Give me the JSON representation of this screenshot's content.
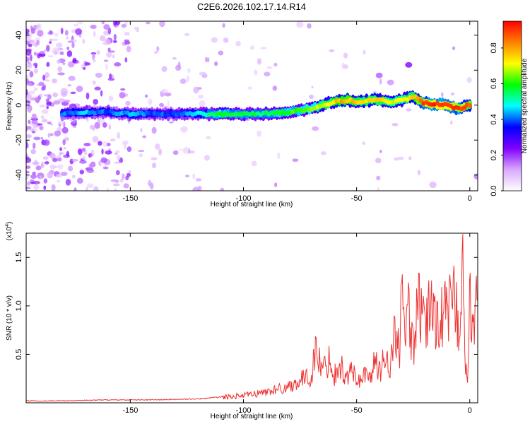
{
  "title": "C2E6.2026.102.17.14.R14",
  "chart_data": [
    {
      "type": "heatmap",
      "title": "C2E6.2026.102.17.14.R14",
      "xlabel": "Height of straight line (km)",
      "ylabel": "Frequency (Hz)",
      "xlim": [
        -196,
        3.5
      ],
      "ylim": [
        -49,
        48
      ],
      "x_ticks": [
        -150,
        -100,
        -50,
        0
      ],
      "y_ticks": [
        -40,
        -20,
        0,
        20,
        40
      ],
      "colorbar": {
        "label": "Normalized spectral amplitude",
        "range": [
          0,
          0.95
        ],
        "ticks": [
          0.0,
          0.2,
          0.4,
          0.6,
          0.8
        ],
        "colors": [
          "#ffffff",
          "#d9a8ff",
          "#8000ff",
          "#0000ff",
          "#00ffff",
          "#00ff00",
          "#ffff00",
          "#ff8000",
          "#ff0000"
        ]
      },
      "ridge": {
        "description": "dominant frequency band vs height",
        "x": [
          -180,
          -170,
          -160,
          -150,
          -140,
          -130,
          -120,
          -110,
          -100,
          -90,
          -80,
          -70,
          -60,
          -55,
          -50,
          -40,
          -35,
          -30,
          -25,
          -20,
          -10,
          -5,
          0
        ],
        "y": [
          -5,
          -4,
          -4,
          -5,
          -5,
          -5,
          -5,
          -5,
          -5,
          -5,
          -4,
          -2,
          2,
          3,
          2,
          3,
          2,
          3,
          5,
          1,
          0,
          -2,
          0
        ],
        "amplitude": [
          0.4,
          0.45,
          0.4,
          0.45,
          0.4,
          0.4,
          0.45,
          0.6,
          0.55,
          0.55,
          0.6,
          0.65,
          0.75,
          0.8,
          0.75,
          0.75,
          0.7,
          0.7,
          0.75,
          0.9,
          0.92,
          0.9,
          0.85
        ]
      },
      "background_note": "sparse violet noise speckles, dense at heights below -150 km"
    },
    {
      "type": "line",
      "xlabel": "Height of straight line (km)",
      "ylabel": "SNR (10 * v/v)",
      "y_multiplier_label": "(x10",
      "y_multiplier_exp": "4",
      "y_multiplier_close": ")",
      "xlim": [
        -196,
        3.5
      ],
      "ylim": [
        0,
        1.75
      ],
      "x_ticks": [
        -150,
        -100,
        -50,
        0
      ],
      "y_ticks": [
        0.5,
        1.0,
        1.5
      ],
      "y_tick_labels": [
        "0.5",
        "1.0",
        "1.5"
      ],
      "series": [
        {
          "name": "SNR",
          "color": "#ee3333",
          "x": [
            -196,
            -180,
            -160,
            -140,
            -120,
            -110,
            -100,
            -95,
            -90,
            -85,
            -80,
            -75,
            -70,
            -68,
            -65,
            -62,
            -60,
            -57,
            -55,
            -52,
            -50,
            -47,
            -45,
            -42,
            -40,
            -37,
            -35,
            -33,
            -31,
            -30,
            -29,
            -27,
            -25,
            -23,
            -20,
            -17,
            -15,
            -12,
            -10,
            -7,
            -5,
            -3,
            -2,
            -1,
            0,
            1,
            2,
            3.5
          ],
          "y": [
            0.02,
            0.02,
            0.03,
            0.03,
            0.04,
            0.06,
            0.08,
            0.1,
            0.12,
            0.15,
            0.18,
            0.25,
            0.3,
            0.6,
            0.35,
            0.5,
            0.3,
            0.45,
            0.25,
            0.4,
            0.2,
            0.35,
            0.25,
            0.45,
            0.35,
            0.55,
            0.4,
            0.8,
            0.6,
            1.3,
            0.7,
            1.0,
            0.6,
            1.1,
            0.8,
            1.15,
            0.9,
            1.0,
            0.95,
            1.2,
            0.85,
            1.7,
            0.4,
            0.2,
            1.2,
            0.7,
            0.9,
            1.35
          ]
        }
      ]
    }
  ]
}
